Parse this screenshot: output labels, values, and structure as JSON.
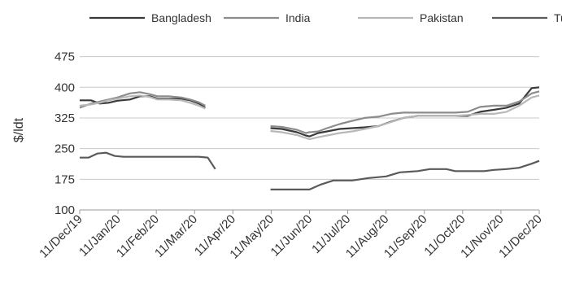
{
  "chart_data": {
    "type": "line",
    "title": "",
    "xlabel": "",
    "ylabel": "$/ldt",
    "ylim": [
      100,
      500
    ],
    "yticks": [
      100,
      175,
      250,
      325,
      400,
      475
    ],
    "grid": true,
    "legend_placement": "top",
    "x_tick_labels": [
      "11/Dec/19",
      "11/Jan/20",
      "11/Feb/20",
      "11/Mar/20",
      "11/Apr/20",
      "11/May/20",
      "11/Jun/20",
      "11/Jul/20",
      "11/Aug/20",
      "11/Sep/20",
      "11/Oct/20",
      "11/Nov/20",
      "11/Dec/20"
    ],
    "series": [
      {
        "name": "Bangladesh",
        "color": "#3a3a3a",
        "points": [
          [
            "2019-12-11",
            368
          ],
          [
            "2019-12-20",
            368
          ],
          [
            "2019-12-27",
            360
          ],
          [
            "2020-01-03",
            362
          ],
          [
            "2020-01-10",
            367
          ],
          [
            "2020-01-20",
            370
          ],
          [
            "2020-01-28",
            378
          ],
          [
            "2020-02-05",
            378
          ],
          [
            "2020-02-11",
            372
          ],
          [
            "2020-02-20",
            372
          ],
          [
            "2020-03-01",
            372
          ],
          [
            "2020-03-08",
            368
          ],
          [
            "2020-03-15",
            360
          ],
          [
            "2020-03-20",
            350
          ],
          null,
          [
            "2020-05-11",
            300
          ],
          [
            "2020-05-20",
            298
          ],
          [
            "2020-06-01",
            290
          ],
          [
            "2020-06-08",
            282
          ],
          [
            "2020-06-11",
            280
          ],
          [
            "2020-06-18",
            288
          ],
          [
            "2020-06-25",
            292
          ],
          [
            "2020-07-05",
            298
          ],
          [
            "2020-07-15",
            300
          ],
          [
            "2020-07-25",
            302
          ],
          [
            "2020-08-05",
            305
          ],
          [
            "2020-08-15",
            316
          ],
          [
            "2020-08-25",
            325
          ],
          [
            "2020-09-05",
            330
          ],
          [
            "2020-09-15",
            330
          ],
          [
            "2020-09-25",
            330
          ],
          [
            "2020-10-05",
            330
          ],
          [
            "2020-10-15",
            330
          ],
          [
            "2020-10-25",
            340
          ],
          [
            "2020-11-05",
            345
          ],
          [
            "2020-11-15",
            350
          ],
          [
            "2020-11-25",
            360
          ],
          [
            "2020-12-05",
            398
          ],
          [
            "2020-12-11",
            400
          ]
        ]
      },
      {
        "name": "India",
        "color": "#8c8c8c",
        "points": [
          [
            "2019-12-11",
            350
          ],
          [
            "2019-12-20",
            360
          ],
          [
            "2019-12-27",
            365
          ],
          [
            "2020-01-03",
            370
          ],
          [
            "2020-01-10",
            375
          ],
          [
            "2020-01-20",
            385
          ],
          [
            "2020-01-28",
            388
          ],
          [
            "2020-02-05",
            383
          ],
          [
            "2020-02-11",
            378
          ],
          [
            "2020-02-20",
            378
          ],
          [
            "2020-03-01",
            375
          ],
          [
            "2020-03-08",
            370
          ],
          [
            "2020-03-15",
            363
          ],
          [
            "2020-03-20",
            355
          ],
          null,
          [
            "2020-05-11",
            305
          ],
          [
            "2020-05-20",
            303
          ],
          [
            "2020-06-01",
            296
          ],
          [
            "2020-06-08",
            288
          ],
          [
            "2020-06-11",
            290
          ],
          [
            "2020-06-18",
            292
          ],
          [
            "2020-06-25",
            300
          ],
          [
            "2020-07-05",
            310
          ],
          [
            "2020-07-15",
            318
          ],
          [
            "2020-07-25",
            325
          ],
          [
            "2020-08-05",
            328
          ],
          [
            "2020-08-15",
            335
          ],
          [
            "2020-08-25",
            338
          ],
          [
            "2020-09-05",
            338
          ],
          [
            "2020-09-15",
            338
          ],
          [
            "2020-09-25",
            338
          ],
          [
            "2020-10-05",
            338
          ],
          [
            "2020-10-15",
            340
          ],
          [
            "2020-10-25",
            352
          ],
          [
            "2020-11-05",
            355
          ],
          [
            "2020-11-15",
            355
          ],
          [
            "2020-11-25",
            365
          ],
          [
            "2020-12-05",
            385
          ],
          [
            "2020-12-11",
            390
          ]
        ]
      },
      {
        "name": "Pakistan",
        "color": "#b8b8b8",
        "points": [
          [
            "2019-12-11",
            355
          ],
          [
            "2019-12-20",
            358
          ],
          [
            "2019-12-27",
            362
          ],
          [
            "2020-01-03",
            368
          ],
          [
            "2020-01-10",
            372
          ],
          [
            "2020-01-20",
            378
          ],
          [
            "2020-01-28",
            380
          ],
          [
            "2020-02-05",
            376
          ],
          [
            "2020-02-11",
            370
          ],
          [
            "2020-02-20",
            370
          ],
          [
            "2020-03-01",
            368
          ],
          [
            "2020-03-08",
            362
          ],
          [
            "2020-03-15",
            355
          ],
          [
            "2020-03-20",
            348
          ],
          null,
          [
            "2020-05-11",
            293
          ],
          [
            "2020-05-20",
            290
          ],
          [
            "2020-06-01",
            283
          ],
          [
            "2020-06-08",
            276
          ],
          [
            "2020-06-11",
            273
          ],
          [
            "2020-06-18",
            278
          ],
          [
            "2020-06-25",
            282
          ],
          [
            "2020-07-05",
            288
          ],
          [
            "2020-07-15",
            292
          ],
          [
            "2020-07-25",
            298
          ],
          [
            "2020-08-05",
            305
          ],
          [
            "2020-08-15",
            315
          ],
          [
            "2020-08-25",
            325
          ],
          [
            "2020-09-05",
            330
          ],
          [
            "2020-09-15",
            330
          ],
          [
            "2020-09-25",
            330
          ],
          [
            "2020-10-05",
            330
          ],
          [
            "2020-10-15",
            332
          ],
          [
            "2020-10-25",
            335
          ],
          [
            "2020-11-05",
            335
          ],
          [
            "2020-11-15",
            340
          ],
          [
            "2020-11-25",
            355
          ],
          [
            "2020-12-05",
            375
          ],
          [
            "2020-12-11",
            380
          ]
        ]
      },
      {
        "name": "Turkey",
        "color": "#5a5a5a",
        "points": [
          [
            "2019-12-11",
            228
          ],
          [
            "2019-12-18",
            228
          ],
          [
            "2019-12-25",
            238
          ],
          [
            "2020-01-01",
            240
          ],
          [
            "2020-01-08",
            232
          ],
          [
            "2020-01-15",
            230
          ],
          [
            "2020-02-01",
            230
          ],
          [
            "2020-02-15",
            230
          ],
          [
            "2020-03-01",
            230
          ],
          [
            "2020-03-15",
            230
          ],
          [
            "2020-03-22",
            228
          ],
          [
            "2020-03-28",
            200
          ],
          null,
          [
            "2020-05-11",
            150
          ],
          [
            "2020-06-01",
            150
          ],
          [
            "2020-06-11",
            150
          ],
          [
            "2020-06-20",
            162
          ],
          [
            "2020-06-30",
            172
          ],
          [
            "2020-07-15",
            172
          ],
          [
            "2020-07-28",
            178
          ],
          [
            "2020-08-11",
            182
          ],
          [
            "2020-08-22",
            192
          ],
          [
            "2020-09-05",
            195
          ],
          [
            "2020-09-15",
            200
          ],
          [
            "2020-09-28",
            200
          ],
          [
            "2020-10-05",
            195
          ],
          [
            "2020-10-20",
            195
          ],
          [
            "2020-10-28",
            195
          ],
          [
            "2020-11-05",
            198
          ],
          [
            "2020-11-15",
            200
          ],
          [
            "2020-11-25",
            203
          ],
          [
            "2020-12-05",
            213
          ],
          [
            "2020-12-11",
            220
          ]
        ]
      }
    ]
  }
}
